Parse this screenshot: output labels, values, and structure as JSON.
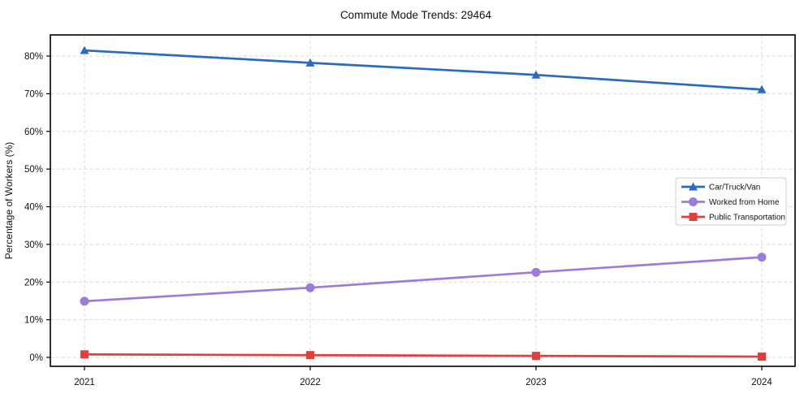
{
  "chart_data": {
    "type": "line",
    "title": "Commute Mode Trends: 29464",
    "xlabel": "",
    "ylabel": "Percentage of Workers (%)",
    "categories": [
      "2021",
      "2022",
      "2023",
      "2024"
    ],
    "series": [
      {
        "name": "Car/Truck/Van",
        "marker": "triangle",
        "color": "#2a6abf",
        "values": [
          81.5,
          78.2,
          75.0,
          71.1
        ]
      },
      {
        "name": "Worked from Home",
        "marker": "circle",
        "color": "#9c7cda",
        "values": [
          14.9,
          18.5,
          22.6,
          26.6
        ]
      },
      {
        "name": "Public Transportation",
        "marker": "square",
        "color": "#e23e3c",
        "values": [
          0.8,
          0.6,
          0.4,
          0.2
        ]
      }
    ],
    "yticks": [
      0,
      10,
      20,
      30,
      40,
      50,
      60,
      70,
      80
    ],
    "ytick_suffix": "%",
    "ylim": [
      -2.4,
      85.6
    ],
    "grid": true,
    "grid_style": "dashed",
    "legend_position": "right-middle",
    "colors": {
      "grid": "#d9d9d9",
      "spine": "#000000",
      "background": "#ffffff",
      "legend_border": "#cccccc",
      "legend_background": "#ffffff",
      "text": "#111111"
    }
  }
}
